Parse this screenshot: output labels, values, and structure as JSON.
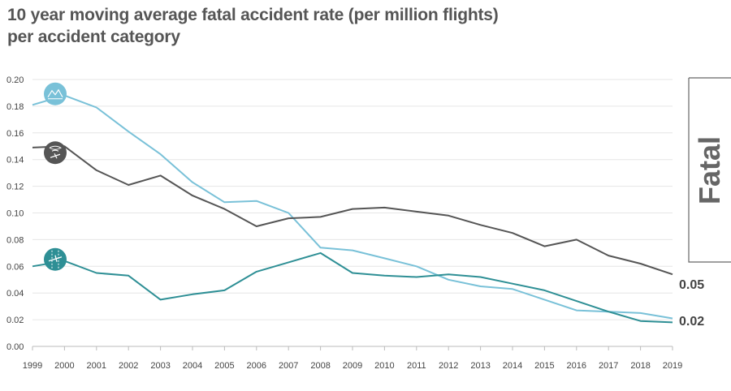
{
  "chart_data": {
    "type": "line",
    "title": [
      "10 year moving average fatal accident rate (per million flights)",
      "per accident category"
    ],
    "x": [
      1999,
      2000,
      2001,
      2002,
      2003,
      2004,
      2005,
      2006,
      2007,
      2008,
      2009,
      2010,
      2011,
      2012,
      2013,
      2014,
      2015,
      2016,
      2017,
      2018,
      2019
    ],
    "x_tick_labels": [
      "1999",
      "2000",
      "2001",
      "2002",
      "2003",
      "2004",
      "2005",
      "2006",
      "2007",
      "2008",
      "2009",
      "2010",
      "2011",
      "2012",
      "2013",
      "2014",
      "2015",
      "2016",
      "2017",
      "2018",
      "2019"
    ],
    "ylim": [
      0,
      0.2
    ],
    "y_tick_labels": [
      "0.00",
      "0.02",
      "0.04",
      "0.06",
      "0.08",
      "0.10",
      "0.12",
      "0.14",
      "0.16",
      "0.18",
      "0.20"
    ],
    "grid": true,
    "series": [
      {
        "color": "#79c1d8",
        "icon": "mountain-terrain-icon",
        "values": [
          0.181,
          0.188,
          0.179,
          0.161,
          0.144,
          0.123,
          0.108,
          0.109,
          0.1,
          0.074,
          0.072,
          0.066,
          0.06,
          0.05,
          0.045,
          0.043,
          0.035,
          0.027,
          0.026,
          0.025,
          0.021
        ]
      },
      {
        "color": "#555555",
        "icon": "plane-spiral-icon",
        "values": [
          0.149,
          0.15,
          0.132,
          0.121,
          0.128,
          0.113,
          0.103,
          0.09,
          0.096,
          0.097,
          0.103,
          0.104,
          0.101,
          0.098,
          0.091,
          0.085,
          0.075,
          0.08,
          0.068,
          0.062,
          0.054
        ]
      },
      {
        "color": "#2e8f95",
        "icon": "runway-plane-icon",
        "values": [
          0.06,
          0.064,
          0.055,
          0.053,
          0.035,
          0.039,
          0.042,
          0.056,
          0.063,
          0.07,
          0.055,
          0.053,
          0.052,
          0.054,
          0.052,
          0.047,
          0.042,
          0.034,
          0.026,
          0.019,
          0.018
        ]
      }
    ],
    "end_labels": [
      "0.05",
      "0.02"
    ],
    "side_label": "Fatal"
  }
}
